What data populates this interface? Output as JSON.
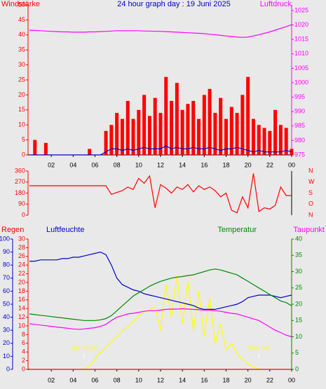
{
  "chart_data": [
    {
      "type": "bar",
      "title": "24 hour graph day : 19 Juni 2025",
      "ylabel": "Windstärke",
      "y2label": "Luftdruck",
      "x": [
        0,
        0.5,
        1,
        1.5,
        2,
        2.5,
        3,
        3.5,
        4,
        4.5,
        5,
        5.5,
        6,
        6.5,
        7,
        7.5,
        8,
        8.5,
        9,
        9.5,
        10,
        10.5,
        11,
        11.5,
        12,
        12.5,
        13,
        13.5,
        14,
        14.5,
        15,
        15.5,
        16,
        16.5,
        17,
        17.5,
        18,
        18.5,
        19,
        19.5,
        20,
        20.5,
        21,
        21.5,
        22,
        22.5,
        23,
        23.5,
        24
      ],
      "xlim": [
        0,
        24
      ],
      "xticks": [
        {
          "value": 2,
          "label": "02"
        },
        {
          "value": 4,
          "label": "04"
        },
        {
          "value": 6,
          "label": "06"
        },
        {
          "value": 8,
          "label": "08"
        },
        10,
        12,
        14,
        16,
        18,
        20,
        22,
        {
          "value": 24,
          "label": "00"
        }
      ],
      "ylim": [
        0,
        50
      ],
      "yticks": [
        0,
        5,
        10,
        15,
        20,
        25,
        30,
        35,
        40,
        45,
        50
      ],
      "y2lim": [
        975,
        1025
      ],
      "y2ticks": [
        975,
        980,
        985,
        990,
        995,
        1000,
        1005,
        1010,
        1015,
        1020,
        1025
      ],
      "series": [
        {
          "kind": "bar",
          "color": "#ff0000",
          "axis": "y",
          "values": [
            0,
            5,
            0,
            4,
            0,
            0,
            0,
            0,
            0,
            0,
            0,
            2,
            0,
            0,
            8,
            10,
            14,
            12,
            18,
            12,
            15,
            20,
            13,
            19,
            14,
            26,
            18,
            24,
            15,
            17,
            18,
            12,
            20,
            22,
            14,
            19,
            12,
            16,
            14,
            20,
            26,
            12,
            10,
            9,
            8,
            15,
            10,
            9,
            2
          ]
        },
        {
          "kind": "line",
          "color": "#0000cc",
          "axis": "y",
          "values": [
            0,
            0,
            0,
            0,
            0,
            0,
            0,
            0,
            0,
            0,
            0,
            0,
            0,
            0,
            1,
            2,
            2,
            1.5,
            2,
            1.5,
            2,
            2.5,
            2,
            2,
            2,
            3,
            2,
            2.5,
            2,
            2,
            2.5,
            2,
            2,
            2.5,
            2,
            1.5,
            2,
            2,
            2.5,
            2,
            1.5,
            1,
            1.5,
            1,
            1,
            1,
            1,
            1.5,
            1
          ]
        },
        {
          "kind": "line",
          "color": "#ff00ff",
          "axis": "y2",
          "values": [
            1018.2,
            1018.1,
            1018.0,
            1017.9,
            1017.8,
            1017.7,
            1017.6,
            1017.6,
            1017.5,
            1017.5,
            1017.5,
            1017.6,
            1017.6,
            1017.7,
            1017.8,
            1017.9,
            1018,
            1018,
            1018,
            1018,
            1018,
            1017.9,
            1017.9,
            1017.8,
            1017.8,
            1017.7,
            1017.6,
            1017.5,
            1017.4,
            1017.3,
            1017.2,
            1017.1,
            1017,
            1016.8,
            1016.6,
            1016.4,
            1016.2,
            1016,
            1015.8,
            1015.7,
            1015.8,
            1016.2,
            1016.6,
            1017.1,
            1017.6,
            1018.2,
            1018.8,
            1019.4,
            1020.1
          ]
        }
      ]
    },
    {
      "type": "line",
      "ylim": [
        0,
        360
      ],
      "yticks": [
        0,
        90,
        180,
        270,
        360
      ],
      "y2lim": [
        0,
        360
      ],
      "y2ticks": [
        {
          "value": 360,
          "label": "N"
        },
        {
          "value": 270,
          "label": "W"
        },
        {
          "value": 180,
          "label": "S"
        },
        {
          "value": 90,
          "label": "O"
        },
        {
          "value": 0,
          "label": "N"
        }
      ],
      "series": [
        {
          "kind": "line",
          "color": "#ff0000",
          "axis": "y",
          "values": [
            240,
            240,
            240,
            240,
            240,
            240,
            240,
            240,
            240,
            240,
            240,
            240,
            240,
            240,
            240,
            170,
            185,
            200,
            230,
            210,
            300,
            260,
            320,
            60,
            250,
            220,
            180,
            230,
            210,
            250,
            190,
            240,
            210,
            230,
            200,
            150,
            180,
            40,
            20,
            150,
            60,
            340,
            30,
            60,
            50,
            80,
            230,
            160,
            160
          ]
        }
      ]
    },
    {
      "type": "line",
      "xticks": [
        {
          "value": 2,
          "label": "02"
        },
        {
          "value": 4,
          "label": "04"
        },
        {
          "value": 6,
          "label": "06"
        },
        {
          "value": 8,
          "label": "08"
        },
        10,
        12,
        14,
        16,
        18,
        20,
        22,
        {
          "value": 24,
          "label": "00"
        }
      ],
      "ylim": [
        0,
        100
      ],
      "yticks": [
        0,
        10,
        20,
        30,
        40,
        50,
        60,
        70,
        80,
        90,
        100
      ],
      "y2lim": [
        0,
        30
      ],
      "y2ticks": [
        0,
        2,
        4,
        6,
        8,
        10,
        12,
        14,
        16,
        18,
        20,
        22,
        24,
        26,
        28,
        30
      ],
      "y3lim": [
        0,
        40
      ],
      "y3ticks": [
        0,
        5,
        10,
        15,
        20,
        25,
        30,
        35,
        40
      ],
      "annotations": [
        {
          "text": "Sun Rise",
          "x": 5
        },
        {
          "text": "Sun Set",
          "x": 21
        }
      ],
      "series": [
        {
          "kind": "line",
          "color": "#ffff00",
          "axis": "y",
          "values": [
            0,
            0,
            0,
            0,
            0,
            0,
            0,
            0,
            0,
            0,
            0,
            3,
            8,
            13,
            17,
            21,
            25,
            29,
            33,
            37,
            41,
            44,
            46,
            48,
            30,
            65,
            40,
            72,
            35,
            68,
            30,
            60,
            25,
            55,
            20,
            35,
            15,
            20,
            12,
            8,
            4,
            2,
            0,
            0,
            0,
            0,
            0,
            0,
            0
          ]
        },
        {
          "name": "Regen",
          "kind": "line",
          "color": "#ff0000",
          "axis": "y2",
          "values": [
            0,
            0,
            0,
            0,
            0,
            0,
            0,
            0,
            0,
            0,
            0,
            0,
            0,
            0,
            0,
            0,
            0,
            0,
            0,
            0,
            0,
            0,
            0,
            0,
            0,
            0,
            0,
            0,
            0,
            0,
            0,
            0,
            0,
            0,
            0,
            0,
            0,
            0,
            0,
            0,
            0,
            0,
            0,
            0,
            0,
            0,
            0,
            0,
            0
          ]
        },
        {
          "name": "Luftfeuchte",
          "kind": "line",
          "color": "#0000cc",
          "axis": "y",
          "values": [
            83,
            83,
            84,
            84,
            84,
            84,
            85,
            85,
            86,
            86,
            87,
            88,
            89,
            90,
            88,
            80,
            70,
            65,
            63,
            61,
            60,
            58,
            57,
            56,
            55,
            54,
            53,
            52,
            51,
            50,
            49,
            47,
            46,
            46,
            46,
            47,
            48,
            49,
            50,
            52,
            55,
            56,
            57,
            57,
            57,
            56,
            55,
            56,
            57
          ]
        },
        {
          "name": "Temperatur",
          "kind": "line",
          "color": "#008800",
          "axis": "y3",
          "values": [
            17,
            16.8,
            16.6,
            16.4,
            16.2,
            16,
            15.8,
            15.6,
            15.4,
            15.2,
            15,
            15,
            15,
            15.2,
            15.6,
            16.5,
            18,
            19.5,
            21,
            22.5,
            23.5,
            24.5,
            25.5,
            26.3,
            27,
            27.5,
            28,
            28.3,
            28.5,
            28.8,
            29,
            29.5,
            30,
            30.5,
            30.8,
            30.5,
            30,
            29.5,
            29,
            28,
            27,
            26,
            25,
            24,
            23,
            22,
            21,
            20.5,
            19.5
          ]
        },
        {
          "name": "Taupunkt",
          "kind": "line",
          "color": "#ff00ff",
          "axis": "y3",
          "values": [
            14,
            13.8,
            13.6,
            13.4,
            13.2,
            13,
            12.8,
            12.6,
            12.4,
            12.3,
            12.4,
            12.6,
            12.8,
            13.2,
            13.8,
            15,
            16,
            16.5,
            17,
            17.2,
            17.5,
            17.8,
            18,
            18,
            18.2,
            18.4,
            18.5,
            18.5,
            18.6,
            18.5,
            18.4,
            18.3,
            18.2,
            18.2,
            18,
            17.8,
            17.5,
            17.2,
            17,
            16.5,
            16,
            15.5,
            15,
            14,
            13,
            12,
            11.3,
            10.5,
            10
          ]
        }
      ]
    }
  ]
}
